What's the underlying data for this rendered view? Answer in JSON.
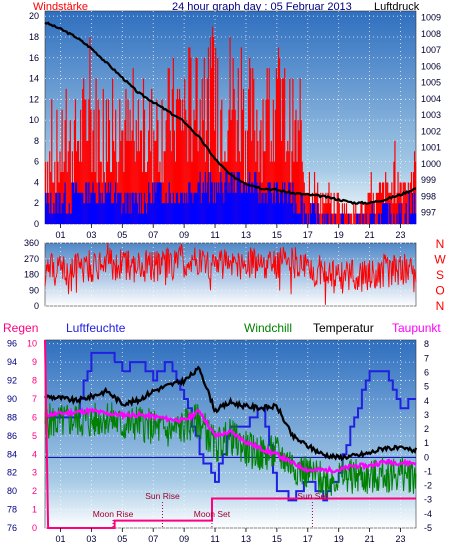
{
  "header": {
    "left_label": "Windstärke",
    "title": "24 hour graph day : 05 Februar 2013",
    "right_label": "Luftdruck"
  },
  "colors": {
    "wind_gust": "#ff0000",
    "wind_avg": "#0000ff",
    "pressure": "#000000",
    "direction": "#ff0000",
    "humidity": "#2020e0",
    "windchill": "#008000",
    "temperature": "#000000",
    "dewpoint": "#ff00ff",
    "rain": "#ff0080",
    "zero_line": "#0000aa",
    "panel_top": "#2f6fbf",
    "panel_bottom": "#ffffff"
  },
  "legend": {
    "rain": "Regen",
    "humidity": "Luftfeuchte",
    "windchill": "Windchill",
    "temperature": "Temperatur",
    "dewpoint": "Taupunkt"
  },
  "annotations": {
    "moon_rise": "Moon Rise",
    "sun_rise": "Sun Rise",
    "moon_set": "Moon Set",
    "sun_set": "Sun Set"
  },
  "x_ticks": [
    "01",
    "03",
    "05",
    "07",
    "09",
    "11",
    "13",
    "15",
    "17",
    "19",
    "21",
    "23"
  ],
  "chart_data": [
    {
      "type": "line",
      "name": "wind-pressure",
      "x_range": [
        0,
        24
      ],
      "y_left": {
        "label": "Windstärke",
        "ticks": [
          "0",
          "2",
          "4",
          "6",
          "8",
          "10",
          "12",
          "14",
          "16",
          "18",
          "20"
        ],
        "range": [
          0,
          20.5
        ]
      },
      "y_right": {
        "label": "Luftdruck",
        "ticks": [
          "997",
          "998",
          "999",
          "1000",
          "1001",
          "1002",
          "1003",
          "1004",
          "1005",
          "1006",
          "1007",
          "1008",
          "1009"
        ],
        "range": [
          996.3,
          1009.4
        ]
      },
      "pressure": {
        "hours": [
          0,
          1,
          2,
          3,
          4,
          5,
          6,
          7,
          8,
          9,
          10,
          11,
          12,
          13,
          14,
          15,
          16,
          17,
          18,
          19,
          20,
          21,
          22,
          23,
          24
        ],
        "values": [
          1008.7,
          1008.3,
          1007.8,
          1007.1,
          1006.2,
          1005.3,
          1004.4,
          1003.8,
          1003.2,
          1002.6,
          1001.6,
          1000.3,
          999.3,
          998.8,
          998.5,
          998.4,
          998.2,
          998.1,
          998.0,
          997.8,
          997.6,
          997.6,
          997.8,
          998.1,
          998.5
        ]
      },
      "wind_gust_level_by_hour": [
        6,
        7,
        8,
        10,
        9,
        9,
        7,
        9,
        10,
        11,
        12,
        11,
        12,
        10,
        10,
        11,
        9,
        4,
        2,
        2,
        1,
        2,
        3,
        4,
        5
      ],
      "wind_avg_level_by_hour": [
        2,
        2,
        3,
        3,
        3,
        2,
        2,
        3,
        3,
        3,
        4,
        3,
        4,
        4,
        3,
        3,
        3,
        1,
        0,
        0,
        0,
        0,
        1,
        1,
        2
      ]
    },
    {
      "type": "line",
      "name": "wind-direction",
      "x_range": [
        0,
        24
      ],
      "y_left": {
        "ticks": [
          "0",
          "90",
          "180",
          "270",
          "360"
        ],
        "range": [
          0,
          360
        ]
      },
      "y_right": {
        "ticks": [
          "N",
          "W",
          "S",
          "O",
          "N"
        ]
      },
      "mean_direction_by_hour": [
        200,
        210,
        220,
        230,
        240,
        230,
        220,
        230,
        240,
        250,
        250,
        240,
        230,
        240,
        240,
        250,
        250,
        230,
        180,
        160,
        170,
        180,
        200,
        210,
        220
      ]
    },
    {
      "type": "line",
      "name": "temperature-humidity",
      "x_range": [
        0,
        24
      ],
      "y_left": {
        "label": "Luftfeuchte",
        "ticks": [
          "76",
          "78",
          "80",
          "82",
          "84",
          "86",
          "88",
          "90",
          "92",
          "94",
          "96"
        ],
        "range": [
          76,
          96.4
        ]
      },
      "y_right": {
        "label": "Temperatur",
        "ticks": [
          "-5",
          "-4",
          "-3",
          "-2",
          "-1",
          "0",
          "1",
          "2",
          "3",
          "4",
          "5",
          "6",
          "7",
          "8"
        ],
        "range": [
          -5,
          8.3
        ]
      },
      "rain_axis": {
        "label": "Regen",
        "ticks": [
          "0",
          "1",
          "2",
          "3",
          "4",
          "5",
          "6",
          "7",
          "8",
          "9",
          "10"
        ],
        "range": [
          0,
          10.2
        ]
      },
      "humidity": {
        "hours": [
          0,
          1,
          2,
          3,
          4,
          5,
          6,
          7,
          8,
          9,
          10,
          11,
          12,
          13,
          14,
          15,
          16,
          17,
          18,
          19,
          20,
          21,
          22,
          23,
          24
        ],
        "values": [
          88,
          88,
          88,
          95,
          95,
          93,
          94,
          92,
          94,
          90,
          84,
          81,
          87,
          87,
          89,
          80,
          79,
          81,
          79,
          82,
          88,
          93,
          93,
          89,
          90
        ]
      },
      "temperature": {
        "hours": [
          0,
          1,
          2,
          3,
          4,
          5,
          6,
          7,
          8,
          9,
          10,
          11,
          12,
          13,
          14,
          15,
          16,
          17,
          18,
          19,
          20,
          21,
          22,
          23,
          24
        ],
        "values": [
          4.3,
          4.2,
          4.0,
          4.3,
          4.7,
          3.8,
          4.0,
          4.7,
          5.1,
          5.4,
          6.3,
          3.3,
          3.9,
          3.6,
          3.5,
          3.6,
          1.5,
          0.8,
          0.2,
          0.0,
          0.1,
          0.3,
          0.7,
          0.6,
          0.5
        ]
      },
      "windchill": {
        "hours": [
          0,
          1,
          2,
          3,
          4,
          5,
          6,
          7,
          8,
          9,
          10,
          11,
          12,
          13,
          14,
          15,
          16,
          17,
          18,
          19,
          20,
          21,
          22,
          23,
          24
        ],
        "values": [
          2.6,
          2.5,
          2.7,
          2.5,
          2.9,
          2.2,
          2.5,
          2.1,
          1.8,
          2.2,
          2.6,
          0.8,
          1.5,
          0.6,
          0.2,
          0.3,
          -0.5,
          -1.1,
          -1.6,
          -1.4,
          -1.3,
          -1.5,
          -1.2,
          -1.2,
          -1.3
        ]
      },
      "dewpoint": {
        "hours": [
          0,
          1,
          2,
          3,
          4,
          5,
          6,
          7,
          8,
          9,
          10,
          11,
          12,
          13,
          14,
          15,
          16,
          17,
          18,
          19,
          20,
          21,
          22,
          23,
          24
        ],
        "values": [
          3.0,
          3.1,
          3.2,
          3.3,
          3.1,
          3.0,
          3.0,
          2.9,
          2.7,
          2.6,
          3.3,
          1.5,
          1.8,
          1.1,
          0.6,
          0.2,
          -0.4,
          -0.9,
          -0.9,
          -0.9,
          -0.6,
          -0.6,
          -0.3,
          -0.4,
          -0.4
        ]
      },
      "rain": {
        "hours": [
          0,
          0.2,
          4.5,
          4.5,
          10.8,
          10.8,
          24
        ],
        "values": [
          10.2,
          0,
          0,
          0.4,
          0.4,
          1.6,
          1.6
        ]
      },
      "zero_line": 0,
      "event_hours": {
        "moon_rise": 4.4,
        "sun_rise": 7.6,
        "moon_set": 10.8,
        "sun_set": 17.3
      }
    }
  ]
}
